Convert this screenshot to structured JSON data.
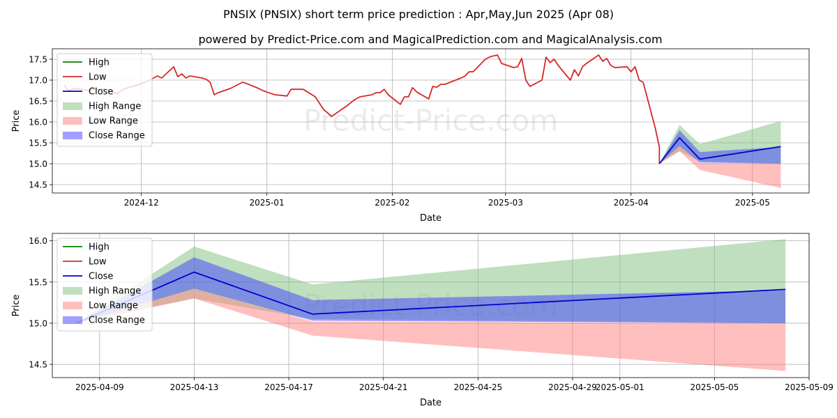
{
  "title": "PNSIX (PNSIX) short term price prediction : Apr,May,Jun 2025 (Apr 08)",
  "subtitle": "powered by Predict-Price.com and MagicalPrediction.com and MagicalAnalysis.com",
  "watermark": "Predict-Price.com",
  "colors": {
    "high": "#008000",
    "low": "#d62728",
    "close": "#0000cc",
    "high_range": "#80c080",
    "low_range": "#ff8080",
    "close_range": "#4040ff",
    "grid": "#b0b0b0"
  },
  "chart_data": [
    {
      "type": "line",
      "xlabel": "Date",
      "ylabel": "Price",
      "xlim": [
        "2024-11-09",
        "2025-05-15"
      ],
      "ylim": [
        14.3,
        17.75
      ],
      "yticks": [
        "14.5",
        "15.0",
        "15.5",
        "16.0",
        "16.5",
        "17.0",
        "17.5"
      ],
      "xticks": [
        {
          "date": "2024-12-01",
          "label": "2024-12"
        },
        {
          "date": "2025-01-01",
          "label": "2025-01"
        },
        {
          "date": "2025-02-01",
          "label": "2025-02"
        },
        {
          "date": "2025-03-01",
          "label": "2025-03"
        },
        {
          "date": "2025-04-01",
          "label": "2025-04"
        },
        {
          "date": "2025-05-01",
          "label": "2025-05"
        }
      ],
      "legend": {
        "position": "upper-left",
        "entries": [
          {
            "label": "High",
            "kind": "line",
            "color": "high"
          },
          {
            "label": "Low",
            "kind": "line",
            "color": "low"
          },
          {
            "label": "Close",
            "kind": "line",
            "color": "close"
          },
          {
            "label": "High Range",
            "kind": "patch",
            "color": "high_range"
          },
          {
            "label": "Low Range",
            "kind": "patch",
            "color": "low_range"
          },
          {
            "label": "Close Range",
            "kind": "patch",
            "color": "close_range"
          }
        ]
      },
      "history": {
        "dates": [
          "2024-11-12",
          "2024-11-13",
          "2024-11-14",
          "2024-11-15",
          "2024-11-18",
          "2024-11-19",
          "2024-11-20",
          "2024-11-21",
          "2024-11-22",
          "2024-11-25",
          "2024-11-26",
          "2024-11-27",
          "2024-11-29",
          "2024-12-02",
          "2024-12-03",
          "2024-12-04",
          "2024-12-05",
          "2024-12-06",
          "2024-12-09",
          "2024-12-10",
          "2024-12-11",
          "2024-12-12",
          "2024-12-13",
          "2024-12-16",
          "2024-12-17",
          "2024-12-18",
          "2024-12-19",
          "2024-12-20",
          "2024-12-23",
          "2024-12-24",
          "2024-12-26",
          "2024-12-27",
          "2024-12-30",
          "2024-12-31",
          "2025-01-02",
          "2025-01-03",
          "2025-01-06",
          "2025-01-07",
          "2025-01-08",
          "2025-01-10",
          "2025-01-13",
          "2025-01-14",
          "2025-01-15",
          "2025-01-16",
          "2025-01-17",
          "2025-01-21",
          "2025-01-22",
          "2025-01-23",
          "2025-01-24",
          "2025-01-27",
          "2025-01-28",
          "2025-01-29",
          "2025-01-30",
          "2025-01-31",
          "2025-02-03",
          "2025-02-04",
          "2025-02-05",
          "2025-02-06",
          "2025-02-07",
          "2025-02-10",
          "2025-02-11",
          "2025-02-12",
          "2025-02-13",
          "2025-02-14",
          "2025-02-18",
          "2025-02-19",
          "2025-02-20",
          "2025-02-21",
          "2025-02-24",
          "2025-02-25",
          "2025-02-26",
          "2025-02-27",
          "2025-02-28",
          "2025-03-03",
          "2025-03-04",
          "2025-03-05",
          "2025-03-06",
          "2025-03-07",
          "2025-03-10",
          "2025-03-11",
          "2025-03-12",
          "2025-03-13",
          "2025-03-14",
          "2025-03-17",
          "2025-03-18",
          "2025-03-19",
          "2025-03-20",
          "2025-03-21",
          "2025-03-24",
          "2025-03-25",
          "2025-03-26",
          "2025-03-27",
          "2025-03-28",
          "2025-03-31",
          "2025-04-01",
          "2025-04-02",
          "2025-04-03",
          "2025-04-04",
          "2025-04-07",
          "2025-04-08"
        ],
        "values": [
          16.88,
          16.75,
          16.78,
          16.8,
          16.75,
          16.78,
          16.78,
          16.78,
          16.78,
          16.68,
          16.74,
          16.8,
          16.85,
          16.95,
          17.0,
          17.05,
          17.1,
          17.05,
          17.32,
          17.08,
          17.15,
          17.05,
          17.1,
          17.05,
          17.02,
          16.95,
          16.65,
          16.7,
          16.8,
          16.85,
          16.95,
          16.92,
          16.8,
          16.75,
          16.68,
          16.65,
          16.62,
          16.78,
          16.78,
          16.78,
          16.6,
          16.45,
          16.3,
          16.22,
          16.13,
          16.4,
          16.48,
          16.55,
          16.6,
          16.65,
          16.7,
          16.7,
          16.78,
          16.65,
          16.42,
          16.6,
          16.6,
          16.82,
          16.72,
          16.55,
          16.85,
          16.83,
          16.9,
          16.9,
          17.05,
          17.1,
          17.2,
          17.2,
          17.5,
          17.55,
          17.58,
          17.6,
          17.4,
          17.3,
          17.32,
          17.52,
          17.0,
          16.85,
          17.0,
          17.55,
          17.42,
          17.5,
          17.35,
          17.0,
          17.25,
          17.1,
          17.32,
          17.4,
          17.6,
          17.45,
          17.52,
          17.35,
          17.3,
          17.32,
          17.2,
          17.32,
          17.0,
          16.95,
          15.85,
          15.4
        ]
      },
      "prediction": {
        "dates": [
          "2025-04-08",
          "2025-04-13",
          "2025-04-18",
          "2025-05-08"
        ],
        "high_range": {
          "upper": [
            15.0,
            15.93,
            15.47,
            16.02
          ],
          "lower": [
            15.0,
            15.3,
            15.05,
            15.0
          ]
        },
        "low_range": {
          "upper": [
            15.0,
            15.42,
            15.02,
            15.0
          ],
          "lower": [
            15.0,
            15.3,
            14.85,
            14.42
          ]
        },
        "close_range": {
          "upper": [
            15.0,
            15.8,
            15.28,
            15.4
          ],
          "lower": [
            15.0,
            15.42,
            15.03,
            15.0
          ]
        },
        "close": [
          15.0,
          15.62,
          15.11,
          15.41
        ]
      }
    },
    {
      "type": "line",
      "xlabel": "Date",
      "ylabel": "Price",
      "xlim": [
        "2025-04-07",
        "2025-05-09"
      ],
      "ylim": [
        14.34,
        16.09
      ],
      "yticks": [
        "14.5",
        "15.0",
        "15.5",
        "16.0"
      ],
      "xticks": [
        {
          "date": "2025-04-09",
          "label": "2025-04-09"
        },
        {
          "date": "2025-04-13",
          "label": "2025-04-13"
        },
        {
          "date": "2025-04-17",
          "label": "2025-04-17"
        },
        {
          "date": "2025-04-21",
          "label": "2025-04-21"
        },
        {
          "date": "2025-04-25",
          "label": "2025-04-25"
        },
        {
          "date": "2025-04-29",
          "label": "2025-04-29"
        },
        {
          "date": "2025-05-01",
          "label": "2025-05-01"
        },
        {
          "date": "2025-05-05",
          "label": "2025-05-05"
        },
        {
          "date": "2025-05-09",
          "label": "2025-05-09"
        }
      ],
      "legend": {
        "position": "upper-left",
        "entries": [
          {
            "label": "High",
            "kind": "line",
            "color": "high"
          },
          {
            "label": "Low",
            "kind": "line",
            "color": "low"
          },
          {
            "label": "Close",
            "kind": "line",
            "color": "close"
          },
          {
            "label": "High Range",
            "kind": "patch",
            "color": "high_range"
          },
          {
            "label": "Low Range",
            "kind": "patch",
            "color": "low_range"
          },
          {
            "label": "Close Range",
            "kind": "patch",
            "color": "close_range"
          }
        ]
      },
      "prediction": {
        "dates": [
          "2025-04-08",
          "2025-04-13",
          "2025-04-18",
          "2025-05-08"
        ],
        "high_range": {
          "upper": [
            15.0,
            15.93,
            15.47,
            16.02
          ],
          "lower": [
            15.0,
            15.3,
            15.05,
            15.0
          ]
        },
        "low_range": {
          "upper": [
            15.0,
            15.42,
            15.02,
            15.0
          ],
          "lower": [
            15.0,
            15.3,
            14.85,
            14.42
          ]
        },
        "close_range": {
          "upper": [
            15.0,
            15.8,
            15.28,
            15.4
          ],
          "lower": [
            15.0,
            15.42,
            15.03,
            15.0
          ]
        },
        "close": [
          15.0,
          15.62,
          15.11,
          15.41
        ]
      }
    }
  ]
}
